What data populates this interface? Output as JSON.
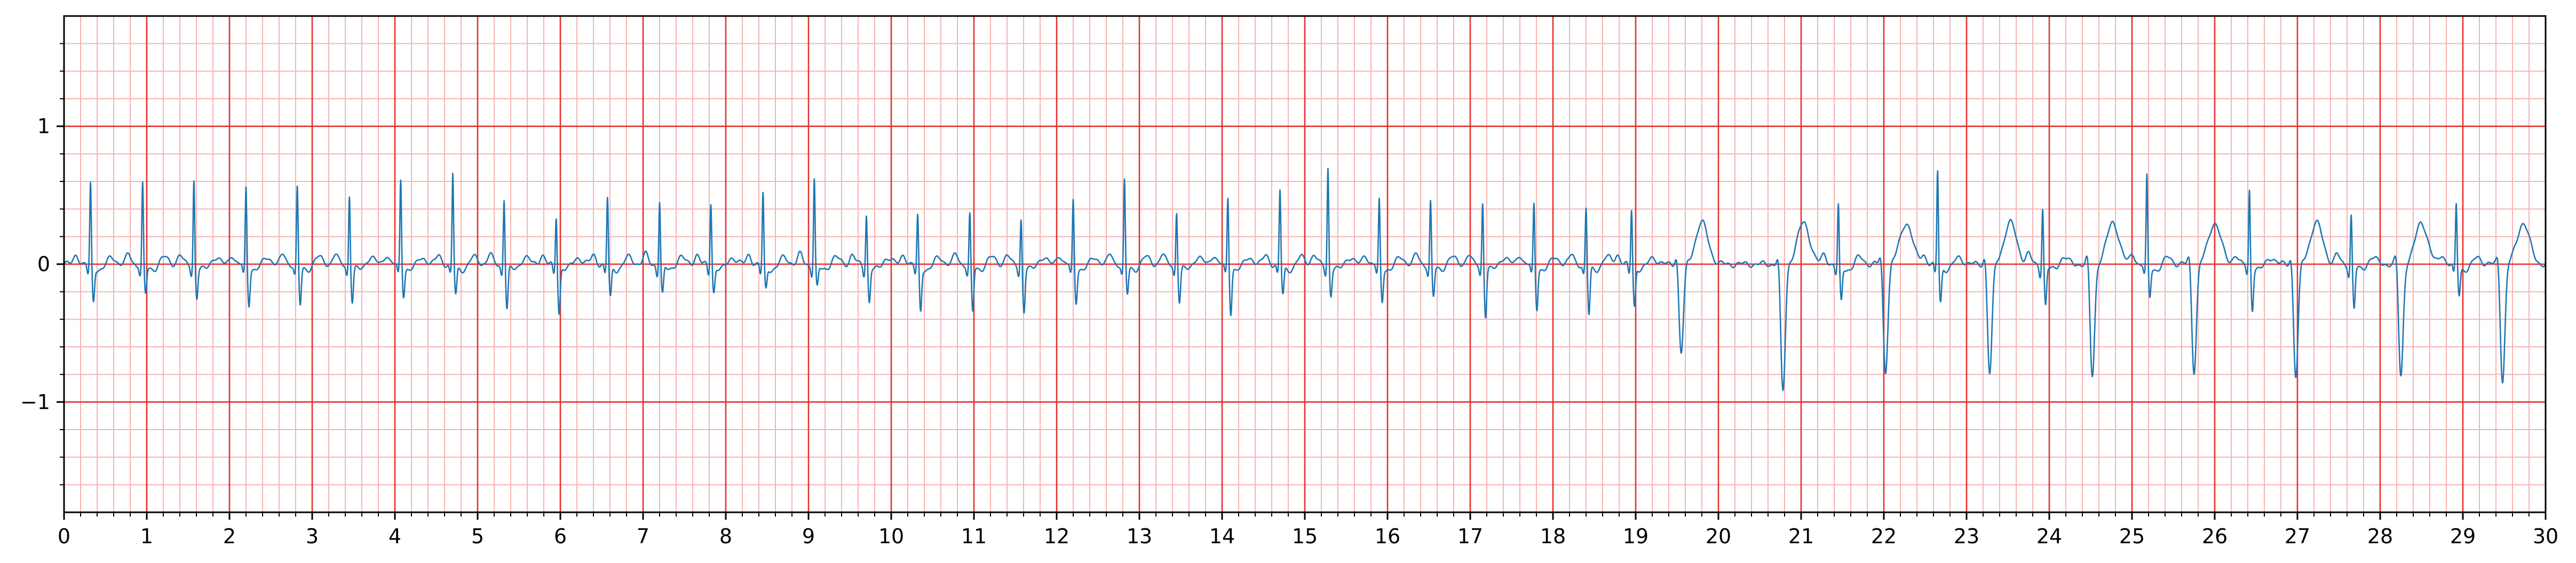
{
  "chart_data": {
    "type": "line",
    "title": "",
    "xlabel": "",
    "ylabel": "",
    "xlim": [
      0,
      30
    ],
    "ylim": [
      -1.8,
      1.8
    ],
    "x_major_ticks": [
      0,
      1,
      2,
      3,
      4,
      5,
      6,
      7,
      8,
      9,
      10,
      11,
      12,
      13,
      14,
      15,
      16,
      17,
      18,
      19,
      20,
      21,
      22,
      23,
      24,
      25,
      26,
      27,
      28,
      29,
      30
    ],
    "x_tick_labels": [
      "0",
      "1",
      "2",
      "3",
      "4",
      "5",
      "6",
      "7",
      "8",
      "9",
      "10",
      "11",
      "12",
      "13",
      "14",
      "15",
      "16",
      "17",
      "18",
      "19",
      "20",
      "21",
      "22",
      "23",
      "24",
      "25",
      "26",
      "27",
      "28",
      "29",
      "30"
    ],
    "y_major_ticks": [
      -1,
      0,
      1
    ],
    "y_tick_labels": [
      "−1",
      "0",
      "1"
    ],
    "grid": true,
    "grid_major_color": "#e8302c",
    "grid_minor_color": "#f7b3b3",
    "line_color": "#1f77b4",
    "beats": [
      {
        "t": 0.32,
        "r": 0.6,
        "s": -0.25
      },
      {
        "t": 0.95,
        "r": 0.6,
        "s": -0.2
      },
      {
        "t": 1.57,
        "r": 0.63,
        "s": -0.22
      },
      {
        "t": 2.2,
        "r": 0.57,
        "s": -0.27
      },
      {
        "t": 2.82,
        "r": 0.57,
        "s": -0.28
      },
      {
        "t": 3.45,
        "r": 0.52,
        "s": -0.25
      },
      {
        "t": 4.07,
        "r": 0.63,
        "s": -0.2
      },
      {
        "t": 4.7,
        "r": 0.67,
        "s": -0.2
      },
      {
        "t": 5.32,
        "r": 0.5,
        "s": -0.3
      },
      {
        "t": 5.95,
        "r": 0.37,
        "s": -0.33
      },
      {
        "t": 6.57,
        "r": 0.5,
        "s": -0.22
      },
      {
        "t": 7.2,
        "r": 0.48,
        "s": -0.2
      },
      {
        "t": 7.82,
        "r": 0.47,
        "s": -0.18
      },
      {
        "t": 8.45,
        "r": 0.53,
        "s": -0.16
      },
      {
        "t": 9.07,
        "r": 0.64,
        "s": -0.15
      },
      {
        "t": 9.7,
        "r": 0.38,
        "s": -0.25
      },
      {
        "t": 10.32,
        "r": 0.37,
        "s": -0.32
      },
      {
        "t": 10.95,
        "r": 0.38,
        "s": -0.33
      },
      {
        "t": 11.57,
        "r": 0.35,
        "s": -0.32
      },
      {
        "t": 12.2,
        "r": 0.48,
        "s": -0.25
      },
      {
        "t": 12.82,
        "r": 0.62,
        "s": -0.2
      },
      {
        "t": 13.45,
        "r": 0.4,
        "s": -0.25
      },
      {
        "t": 14.07,
        "r": 0.5,
        "s": -0.33
      },
      {
        "t": 14.7,
        "r": 0.55,
        "s": -0.2
      },
      {
        "t": 15.28,
        "r": 0.72,
        "s": -0.2
      },
      {
        "t": 15.9,
        "r": 0.48,
        "s": -0.25
      },
      {
        "t": 16.52,
        "r": 0.47,
        "s": -0.22
      },
      {
        "t": 17.15,
        "r": 0.47,
        "s": -0.35
      },
      {
        "t": 17.77,
        "r": 0.45,
        "s": -0.3
      },
      {
        "t": 18.4,
        "r": 0.42,
        "s": -0.35
      },
      {
        "t": 18.95,
        "r": 0.42,
        "s": -0.28
      },
      {
        "t": 21.45,
        "r": 0.44,
        "s": -0.25
      },
      {
        "t": 22.65,
        "r": 0.7,
        "s": -0.25
      },
      {
        "t": 23.92,
        "r": 0.43,
        "s": -0.28
      },
      {
        "t": 25.18,
        "r": 0.65,
        "s": -0.22
      },
      {
        "t": 26.42,
        "r": 0.56,
        "s": -0.3
      },
      {
        "t": 27.65,
        "r": 0.38,
        "s": -0.3
      },
      {
        "t": 28.92,
        "r": 0.45,
        "s": -0.2
      }
    ],
    "pvcs": [
      {
        "t": 19.55,
        "d": -0.65
      },
      {
        "t": 20.78,
        "d": -0.93
      },
      {
        "t": 22.02,
        "d": -0.78
      },
      {
        "t": 23.28,
        "d": -0.8
      },
      {
        "t": 24.52,
        "d": -0.82
      },
      {
        "t": 25.75,
        "d": -0.78
      },
      {
        "t": 26.98,
        "d": -0.82
      },
      {
        "t": 28.25,
        "d": -0.82
      },
      {
        "t": 29.48,
        "d": -0.85
      }
    ]
  }
}
